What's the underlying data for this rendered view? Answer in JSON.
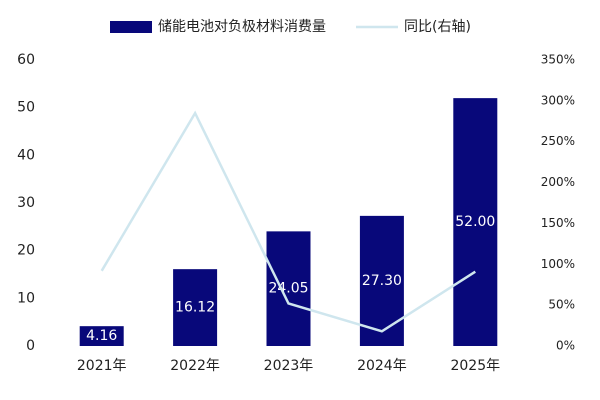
{
  "chart_data": {
    "type": "bar",
    "categories": [
      "2021年",
      "2022年",
      "2023年",
      "2024年",
      "2025年"
    ],
    "series": [
      {
        "name": "储能电池对负极材料消费量",
        "type": "bar",
        "color": "#08087a",
        "values": [
          4.16,
          16.12,
          24.05,
          27.3,
          52.0
        ],
        "value_labels": [
          "4.16",
          "16.12",
          "24.05",
          "27.30",
          "52.00"
        ]
      },
      {
        "name": "同比(右轴)",
        "type": "line",
        "axis": "y2",
        "color": "#cfe6ee",
        "values": [
          92,
          285,
          52,
          18,
          91
        ]
      }
    ],
    "ylim": [
      0,
      60
    ],
    "yticks": [
      0,
      10,
      20,
      30,
      40,
      50,
      60
    ],
    "y2lim": [
      0,
      350
    ],
    "y2ticks": [
      {
        "value": 0,
        "label": "0%"
      },
      {
        "value": 50,
        "label": "50%"
      },
      {
        "value": 100,
        "label": "100%"
      },
      {
        "value": 150,
        "label": "150%"
      },
      {
        "value": 200,
        "label": "200%"
      },
      {
        "value": 250,
        "label": "250%"
      },
      {
        "value": 300,
        "label": "300%"
      },
      {
        "value": 350,
        "label": "350%"
      }
    ],
    "grid": false
  }
}
